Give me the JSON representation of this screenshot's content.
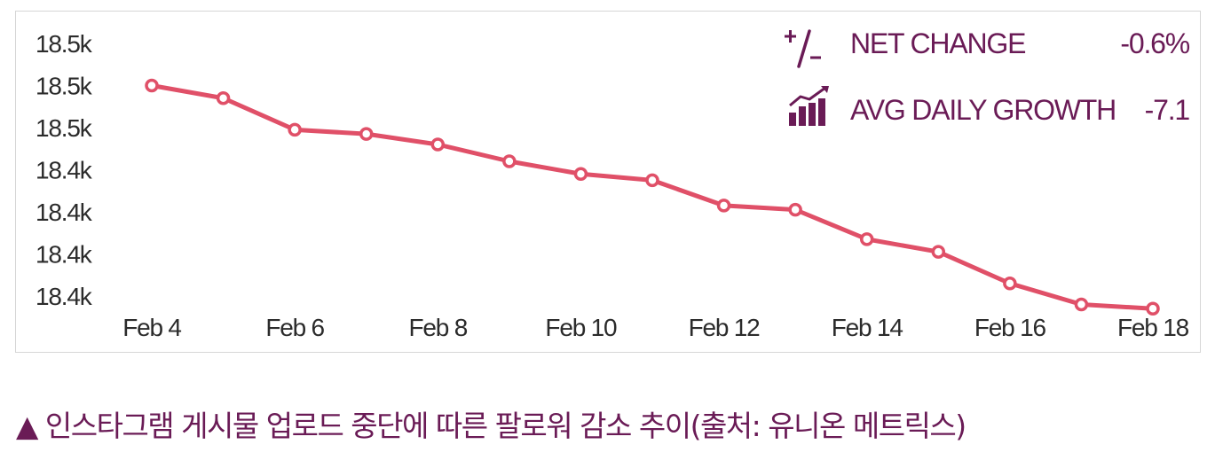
{
  "chart_data": {
    "type": "line",
    "x": [
      "Feb 4",
      "Feb 5",
      "Feb 6",
      "Feb 7",
      "Feb 8",
      "Feb 9",
      "Feb 10",
      "Feb 11",
      "Feb 12",
      "Feb 13",
      "Feb 14",
      "Feb 15",
      "Feb 16",
      "Feb 17",
      "Feb 18"
    ],
    "x_tick_labels": [
      "Feb 4",
      "Feb 6",
      "Feb 8",
      "Feb 10",
      "Feb 12",
      "Feb 14",
      "Feb 16",
      "Feb 18"
    ],
    "y_tick_labels": [
      "18.5k",
      "18.5k",
      "18.5k",
      "18.4k",
      "18.4k",
      "18.4k",
      "18.4k"
    ],
    "y_ticks": [
      18510,
      18490,
      18470,
      18450,
      18430,
      18410,
      18390
    ],
    "ylim": [
      18390,
      18510
    ],
    "series": [
      {
        "values": [
          18490,
          18484,
          18469,
          18467,
          18462,
          18454,
          18448,
          18445,
          18433,
          18431,
          18417,
          18411,
          18396,
          18386,
          18384
        ]
      }
    ],
    "grid": false,
    "colors": {
      "line": "#e05068",
      "marker_fill": "#ffffff",
      "text": "#2b2b2b",
      "accent": "#6a1b56"
    }
  },
  "stats": {
    "net_change": {
      "icon": "plus-minus-icon",
      "label": "NET CHANGE",
      "value": "-0.6%"
    },
    "avg_daily_growth": {
      "icon": "growth-bars-icon",
      "label": "AVG DAILY GROWTH",
      "value": "-7.1"
    }
  },
  "caption": "▲ 인스타그램 게시물 업로드 중단에 따른 팔로워 감소 추이(출처: 유니온 메트릭스)"
}
